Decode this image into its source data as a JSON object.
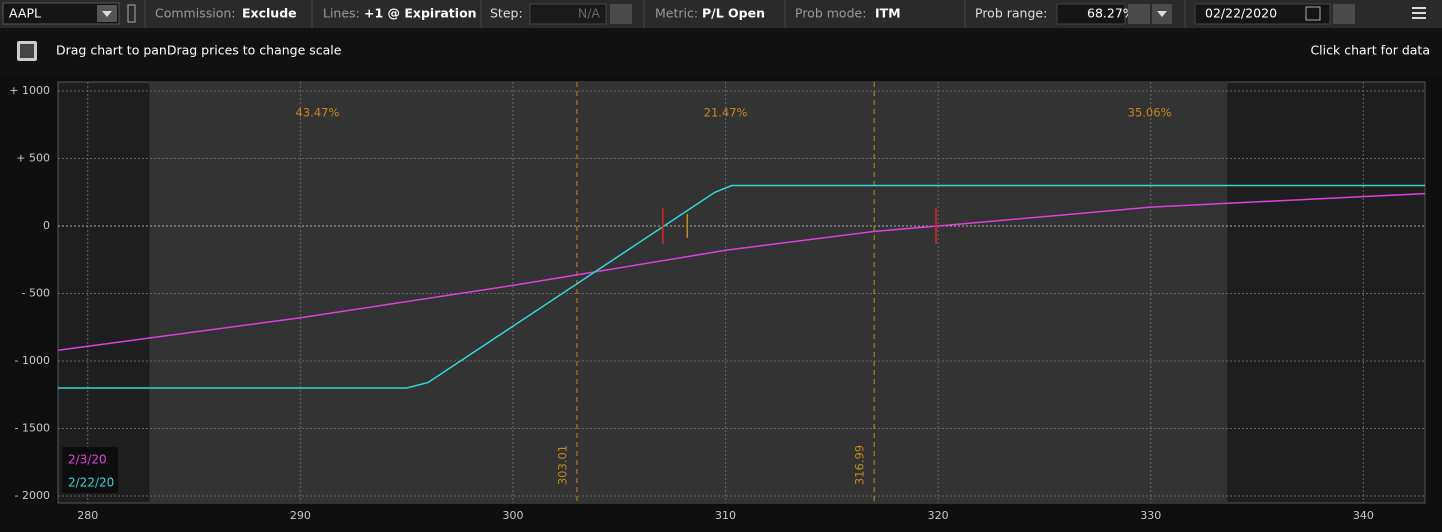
{
  "toolbar": {
    "symbol": "AAPL",
    "commission_label": "Commission:",
    "commission": "Exclude",
    "lines_label": "Lines:",
    "lines": "+1 @ Expiration",
    "step_label": "Step:",
    "step": "N/A",
    "metric_label": "Metric:",
    "metric": "P/L Open",
    "prob_mode_label": "Prob mode:",
    "prob_mode": "ITM",
    "prob_range_label": "Prob range:",
    "prob_range": "68.27%",
    "date": "02/22/2020"
  },
  "header": {
    "hint": "Drag chart to panDrag prices to change scale",
    "click_hint": "Click chart for data"
  },
  "chart_data": {
    "type": "line",
    "xlim": [
      278.6,
      342.9
    ],
    "ylim": [
      -2052,
      1067
    ],
    "xticks": [
      280,
      290,
      300,
      310,
      320,
      330,
      340
    ],
    "yticks": [
      {
        "value": 1000,
        "label": "+ 1000"
      },
      {
        "value": 500,
        "label": "+ 500"
      },
      0,
      {
        "value": -500,
        "label": "- 500"
      },
      {
        "value": -1000,
        "label": "- 1000"
      },
      {
        "value": -1500,
        "label": "- 1500"
      },
      {
        "value": -2000,
        "label": "- 2000"
      }
    ],
    "grid": true,
    "shaded_range": [
      282.9,
      333.6
    ],
    "price_lines": [
      303.01,
      316.99
    ],
    "probabilities": [
      43.47,
      21.47,
      35.06
    ],
    "value_labels": [
      "43.47%",
      "21.47%",
      "35.06%"
    ],
    "markers": [
      {
        "x": 307.05,
        "color": "#e02020"
      },
      {
        "x": 308.2,
        "color": "#c08a1e"
      },
      {
        "x": 319.9,
        "color": "#e02020"
      }
    ],
    "series": [
      {
        "name": "2/3/20",
        "color": "#e040e0",
        "x": [
          278.6,
          290,
          300,
          310,
          317,
          320,
          330,
          342.9
        ],
        "values": [
          -920,
          -680,
          -440,
          -180,
          -40,
          0,
          140,
          240
        ]
      },
      {
        "name": "2/22/20",
        "color": "#30d8d8",
        "x": [
          278.6,
          295,
          296,
          309.5,
          310.3,
          342.9
        ],
        "values": [
          -1200,
          -1200,
          -1160,
          250,
          300,
          300
        ]
      }
    ]
  }
}
